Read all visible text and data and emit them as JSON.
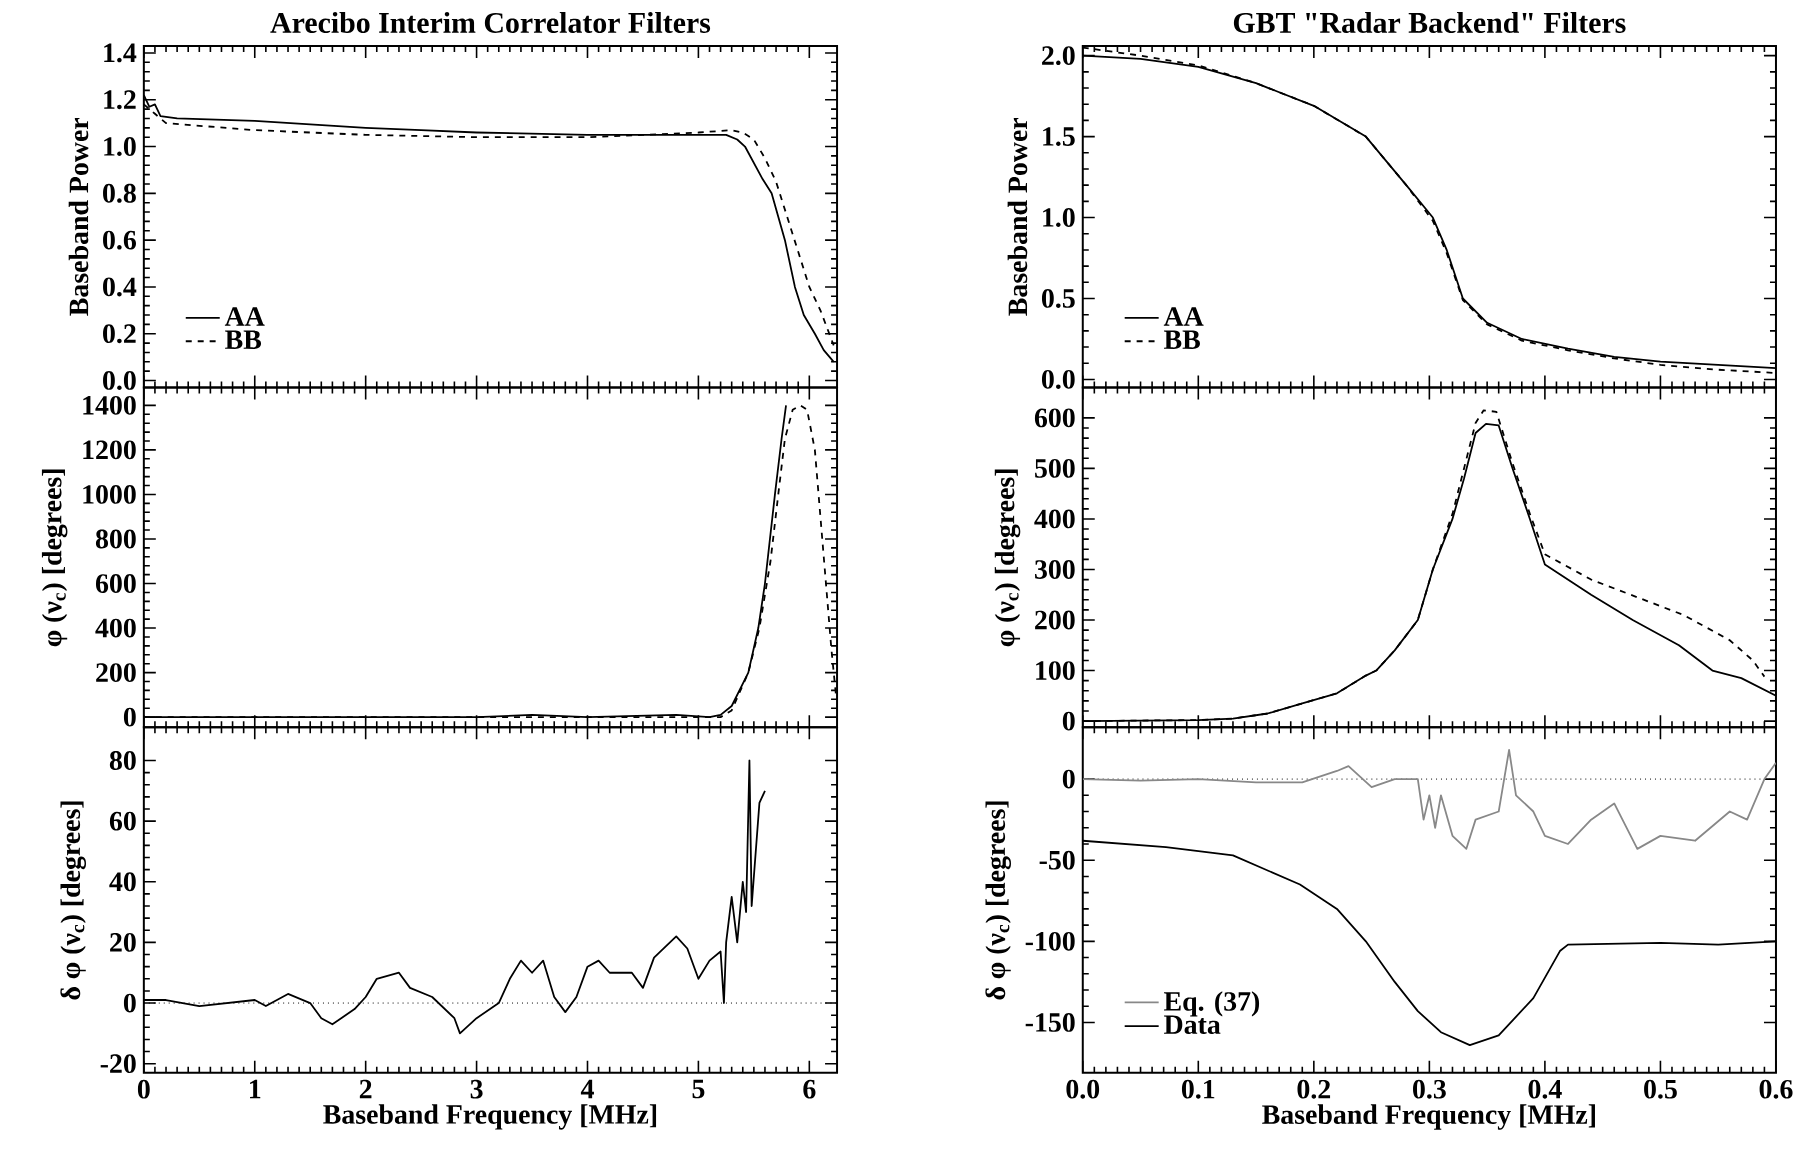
{
  "chart_data": [
    {
      "type": "line",
      "title": "Arecibo Interim Correlator Filters",
      "ylabel": "Baseband Power",
      "xlim": [
        0,
        6.25
      ],
      "ylim": [
        -0.03,
        1.43
      ],
      "xticks": [
        0,
        1,
        2,
        3,
        4,
        5,
        6
      ],
      "yticks": [
        {
          "value": 0,
          "label": "0.0"
        },
        {
          "value": 0.2,
          "label": "0.2"
        },
        {
          "value": 0.4,
          "label": "0.4"
        },
        {
          "value": 0.6,
          "label": "0.6"
        },
        {
          "value": 0.8,
          "label": "0.8"
        },
        {
          "value": 1,
          "label": "1.0"
        },
        {
          "value": 1.2,
          "label": "1.2"
        },
        {
          "value": 1.4,
          "label": "1.4"
        }
      ],
      "tick_labels": "y",
      "legend": "bottom left",
      "series": [
        {
          "name": "AA",
          "color": "#000000",
          "line_style": "solid",
          "x": [
            0,
            0.05,
            0.1,
            0.15,
            0.3,
            1,
            2,
            2.5,
            3,
            4,
            5,
            5.25,
            5.35,
            5.42,
            5.5,
            5.58,
            5.66,
            5.72,
            5.78,
            5.87,
            5.95,
            6.05,
            6.13,
            6.22
          ],
          "values": [
            1.22,
            1.17,
            1.18,
            1.13,
            1.12,
            1.11,
            1.08,
            1.07,
            1.06,
            1.05,
            1.05,
            1.05,
            1.03,
            1.0,
            0.93,
            0.86,
            0.8,
            0.7,
            0.6,
            0.4,
            0.28,
            0.2,
            0.13,
            0.08
          ]
        },
        {
          "name": "BB",
          "color": "#000000",
          "line_style": "dashed",
          "x": [
            0,
            0.1,
            0.2,
            1,
            2,
            3,
            4,
            4.5,
            5,
            5.3,
            5.4,
            5.5,
            5.6,
            5.7,
            5.8,
            5.9,
            6.0,
            6.1,
            6.22
          ],
          "values": [
            1.18,
            1.14,
            1.1,
            1.07,
            1.05,
            1.04,
            1.04,
            1.05,
            1.06,
            1.07,
            1.06,
            1.03,
            0.95,
            0.85,
            0.7,
            0.55,
            0.4,
            0.3,
            0.15
          ]
        }
      ]
    },
    {
      "type": "line",
      "title": "GBT \"Radar Backend\" Filters",
      "ylabel": "Baseband Power",
      "xlim": [
        0,
        0.6
      ],
      "ylim": [
        -0.05,
        2.06
      ],
      "xticks": [
        0,
        0.1,
        0.2,
        0.3,
        0.4,
        0.5,
        0.6
      ],
      "yticks": [
        {
          "value": 0,
          "label": "0.0"
        },
        {
          "value": 0.5,
          "label": "0.5"
        },
        {
          "value": 1,
          "label": "1.0"
        },
        {
          "value": 1.5,
          "label": "1.5"
        },
        {
          "value": 2,
          "label": "2.0"
        }
      ],
      "tick_labels": "y",
      "legend": "bottom left",
      "series": [
        {
          "name": "AA",
          "color": "#000000",
          "line_style": "solid",
          "x": [
            0,
            0.05,
            0.1,
            0.15,
            0.2,
            0.245,
            0.28,
            0.303,
            0.315,
            0.329,
            0.35,
            0.38,
            0.42,
            0.46,
            0.5,
            0.55,
            0.6
          ],
          "values": [
            2.0,
            1.98,
            1.93,
            1.83,
            1.69,
            1.5,
            1.2,
            1.0,
            0.8,
            0.5,
            0.35,
            0.25,
            0.19,
            0.14,
            0.11,
            0.09,
            0.07
          ]
        },
        {
          "name": "BB",
          "color": "#000000",
          "line_style": "dashed",
          "x": [
            0,
            0.05,
            0.1,
            0.15,
            0.2,
            0.245,
            0.28,
            0.303,
            0.315,
            0.329,
            0.35,
            0.38,
            0.42,
            0.46,
            0.5,
            0.55,
            0.6
          ],
          "values": [
            2.05,
            2.0,
            1.94,
            1.83,
            1.69,
            1.5,
            1.2,
            0.98,
            0.78,
            0.49,
            0.34,
            0.24,
            0.18,
            0.13,
            0.09,
            0.06,
            0.04
          ]
        }
      ]
    },
    {
      "type": "line",
      "ylabel": "φ (ν$_{c}$) [degrees]",
      "xlim": [
        0,
        6.25
      ],
      "ylim": [
        -45,
        1480
      ],
      "xticks": [
        0,
        1,
        2,
        3,
        4,
        5,
        6
      ],
      "yticks": [
        0,
        200,
        400,
        600,
        800,
        1000,
        1200,
        1400
      ],
      "tick_labels": "y",
      "series": [
        {
          "color": "#000000",
          "line_style": "solid",
          "x": [
            0,
            1,
            2,
            3,
            3.5,
            4,
            4.8,
            5.1,
            5.2,
            5.3,
            5.45,
            5.54,
            5.6,
            5.69,
            5.75,
            5.79
          ],
          "values": [
            0,
            0,
            0,
            0,
            10,
            0,
            10,
            0,
            10,
            50,
            200,
            400,
            600,
            1000,
            1250,
            1400
          ]
        },
        {
          "color": "#000000",
          "line_style": "dashed",
          "x": [
            0,
            1,
            2,
            3,
            4,
            5,
            5.2,
            5.3,
            5.45,
            5.55,
            5.65,
            5.72,
            5.78,
            5.85,
            5.92,
            5.98,
            6.05,
            6.1,
            6.15,
            6.2,
            6.24
          ],
          "values": [
            0,
            0,
            0,
            0,
            0,
            0,
            0,
            30,
            200,
            400,
            700,
            1000,
            1250,
            1380,
            1400,
            1380,
            1200,
            900,
            600,
            300,
            100
          ]
        }
      ]
    },
    {
      "type": "line",
      "ylabel": "φ (ν$_{c}$) [degrees]",
      "xlim": [
        0,
        0.6
      ],
      "ylim": [
        -12,
        660
      ],
      "xticks": [
        0,
        0.1,
        0.2,
        0.3,
        0.4,
        0.5,
        0.6
      ],
      "yticks": [
        0,
        100,
        200,
        300,
        400,
        500,
        600
      ],
      "tick_labels": "y",
      "series": [
        {
          "color": "#000000",
          "line_style": "solid",
          "x": [
            0,
            0.1,
            0.13,
            0.16,
            0.19,
            0.22,
            0.245,
            0.254,
            0.27,
            0.29,
            0.303,
            0.32,
            0.33,
            0.34,
            0.349,
            0.36,
            0.372,
            0.387,
            0.4,
            0.44,
            0.476,
            0.516,
            0.545,
            0.57,
            0.6
          ],
          "values": [
            0,
            2,
            5,
            15,
            35,
            55,
            90,
            100,
            140,
            200,
            300,
            400,
            480,
            570,
            588,
            585,
            500,
            400,
            310,
            250,
            200,
            150,
            100,
            85,
            50
          ]
        },
        {
          "color": "#000000",
          "line_style": "dashed",
          "x": [
            0,
            0.1,
            0.13,
            0.16,
            0.19,
            0.22,
            0.245,
            0.254,
            0.27,
            0.29,
            0.303,
            0.32,
            0.33,
            0.34,
            0.347,
            0.358,
            0.372,
            0.387,
            0.4,
            0.44,
            0.48,
            0.52,
            0.56,
            0.58,
            0.59
          ],
          "values": [
            0,
            2,
            5,
            15,
            35,
            55,
            90,
            100,
            140,
            200,
            300,
            410,
            500,
            590,
            615,
            612,
            510,
            410,
            330,
            280,
            245,
            210,
            160,
            120,
            88
          ]
        }
      ]
    },
    {
      "type": "line",
      "xlabel": "Baseband Frequency [MHz]",
      "ylabel": "δ φ (ν$_{c}$) [degrees]",
      "xlim": [
        0,
        6.25
      ],
      "ylim": [
        -23,
        91
      ],
      "xticks": [
        0,
        1,
        2,
        3,
        4,
        5,
        6
      ],
      "yticks": [
        -20,
        0,
        20,
        40,
        60,
        80
      ],
      "ref_lines": [
        {
          "axis": "y",
          "value": 0,
          "line_style": "dotted"
        }
      ],
      "series": [
        {
          "color": "#000000",
          "line_style": "solid",
          "x": [
            0,
            0.2,
            0.5,
            1,
            1.1,
            1.3,
            1.5,
            1.6,
            1.7,
            1.9,
            2,
            2.1,
            2.3,
            2.4,
            2.6,
            2.8,
            2.85,
            3,
            3.2,
            3.3,
            3.4,
            3.5,
            3.6,
            3.7,
            3.8,
            3.9,
            4,
            4.1,
            4.2,
            4.4,
            4.5,
            4.6,
            4.8,
            4.9,
            5,
            5.1,
            5.2,
            5.23,
            5.25,
            5.3,
            5.35,
            5.4,
            5.43,
            5.46,
            5.48,
            5.5,
            5.55,
            5.58,
            5.6
          ],
          "values": [
            1,
            1,
            -1,
            1,
            -1,
            3,
            0,
            -5,
            -7,
            -2,
            2,
            8,
            10,
            5,
            2,
            -5,
            -10,
            -5,
            0,
            8,
            14,
            10,
            14,
            2,
            -3,
            2,
            12,
            14,
            10,
            10,
            5,
            15,
            22,
            18,
            8,
            14,
            17,
            0,
            20,
            35,
            20,
            40,
            30,
            80,
            32,
            null,
            66,
            null,
            70
          ]
        }
      ]
    },
    {
      "type": "line",
      "xlabel": "Baseband Frequency [MHz]",
      "ylabel": "δ φ (ν$_{c}$) [degrees]",
      "xlim": [
        0,
        0.6
      ],
      "ylim": [
        -181,
        32
      ],
      "xticks": [
        {
          "value": 0,
          "label": "0.0"
        },
        {
          "value": 0.1,
          "label": "0.1"
        },
        {
          "value": 0.2,
          "label": "0.2"
        },
        {
          "value": 0.3,
          "label": "0.3"
        },
        {
          "value": 0.4,
          "label": "0.4"
        },
        {
          "value": 0.5,
          "label": "0.5"
        },
        {
          "value": 0.6,
          "label": "0.6"
        }
      ],
      "yticks": [
        -150,
        -100,
        -50,
        0
      ],
      "legend": "bottom left",
      "ref_lines": [
        {
          "axis": "y",
          "value": 0,
          "line_style": "dotted"
        }
      ],
      "series": [
        {
          "name": "Eq. (37)",
          "color": "#888888",
          "line_style": "solid",
          "x": [
            0,
            0.05,
            0.1,
            0.15,
            0.19,
            0.22,
            0.23,
            0.25,
            0.27,
            0.29,
            0.295,
            0.3,
            0.305,
            0.31,
            0.32,
            0.332,
            0.34,
            0.36,
            0.369,
            0.375,
            0.39,
            0.4,
            0.42,
            0.44,
            0.46,
            0.48,
            0.5,
            0.53,
            0.56,
            0.575,
            0.59,
            0.6
          ],
          "values": [
            0,
            -1,
            0,
            -2,
            -2,
            5,
            8,
            -5,
            0,
            0,
            -25,
            -10,
            -30,
            -10,
            -35,
            -43,
            -25,
            -20,
            18,
            -10,
            -20,
            -35,
            -40,
            -25,
            -15,
            -43,
            -35,
            -38,
            -20,
            -25,
            0,
            10
          ]
        },
        {
          "name": "Data",
          "color": "#000000",
          "line_style": "solid",
          "x": [
            0,
            0.072,
            0.13,
            0.188,
            0.22,
            0.245,
            0.27,
            0.29,
            0.31,
            0.335,
            0.36,
            0.39,
            0.413,
            0.42,
            0.5,
            0.55,
            0.6
          ],
          "values": [
            -38,
            -42,
            -47,
            -65,
            -80,
            -100,
            -125,
            -143,
            -156,
            -164,
            -158,
            -135,
            -106,
            -102,
            -101,
            -102,
            -100
          ]
        }
      ]
    }
  ]
}
